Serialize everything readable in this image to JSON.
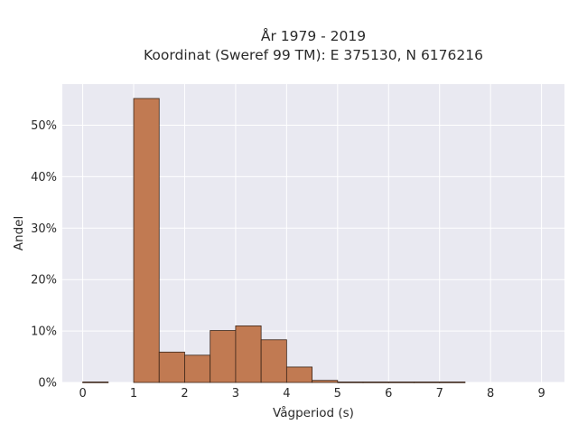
{
  "chart_data": {
    "type": "bar",
    "title_lines": [
      "År 1979 - 2019",
      "Koordinat (Sweref 99 TM): E 375130, N 6176216"
    ],
    "xlabel": "Vågperiod (s)",
    "ylabel": "Andel",
    "x_ticks": [
      "0",
      "1",
      "2",
      "3",
      "4",
      "5",
      "6",
      "7",
      "8",
      "9"
    ],
    "y_ticks": [
      "0%",
      "10%",
      "20%",
      "30%",
      "40%",
      "50%"
    ],
    "xlim": [
      -0.4,
      9.45
    ],
    "ylim": [
      0,
      58
    ],
    "bin_width": 0.5,
    "bins": [
      {
        "x0": 0.0,
        "value": 0.1
      },
      {
        "x0": 0.5,
        "value": 0.0
      },
      {
        "x0": 1.0,
        "value": 55.2
      },
      {
        "x0": 1.5,
        "value": 5.9
      },
      {
        "x0": 2.0,
        "value": 5.3
      },
      {
        "x0": 2.5,
        "value": 10.1
      },
      {
        "x0": 3.0,
        "value": 11.0
      },
      {
        "x0": 3.5,
        "value": 8.3
      },
      {
        "x0": 4.0,
        "value": 3.0
      },
      {
        "x0": 4.5,
        "value": 0.4
      },
      {
        "x0": 5.0,
        "value": 0.1
      },
      {
        "x0": 5.5,
        "value": 0.1
      },
      {
        "x0": 6.0,
        "value": 0.1
      },
      {
        "x0": 6.5,
        "value": 0.1
      },
      {
        "x0": 7.0,
        "value": 0.1
      }
    ],
    "grid": true,
    "colors": {
      "bar_fill": "#c17a52",
      "bar_edge": "#3b2518",
      "plot_background": "#e9e9f1",
      "grid": "#ffffff"
    }
  }
}
